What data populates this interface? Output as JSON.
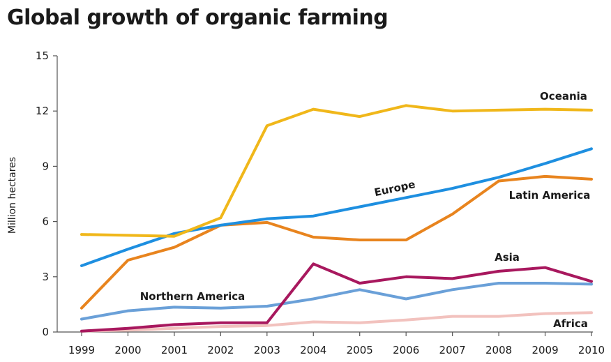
{
  "chart_data": {
    "type": "line",
    "title": "Global growth of organic farming",
    "xlabel": "",
    "ylabel": "Million hectares",
    "ylim": [
      0,
      15
    ],
    "yticks": [
      0,
      3,
      6,
      9,
      12,
      15
    ],
    "x": [
      1999,
      2000,
      2001,
      2002,
      2003,
      2004,
      2005,
      2006,
      2007,
      2008,
      2009,
      2010
    ],
    "grid": false,
    "legend": "inline labels",
    "series": [
      {
        "name": "Oceania",
        "color": "#f0b71a",
        "values": [
          5.3,
          5.25,
          5.2,
          6.2,
          11.2,
          12.1,
          11.7,
          12.3,
          12.0,
          12.05,
          12.1,
          12.05
        ]
      },
      {
        "name": "Europe",
        "color": "#1e8fe0",
        "values": [
          3.6,
          4.5,
          5.35,
          5.8,
          6.15,
          6.3,
          6.8,
          7.3,
          7.8,
          8.4,
          9.15,
          9.95
        ]
      },
      {
        "name": "Latin America",
        "color": "#e8841e",
        "values": [
          1.3,
          3.9,
          4.6,
          5.8,
          5.95,
          5.15,
          5.0,
          5.0,
          6.4,
          8.2,
          8.45,
          8.3
        ]
      },
      {
        "name": "Asia",
        "color": "#a8185e",
        "values": [
          0.05,
          0.2,
          0.4,
          0.5,
          0.5,
          3.7,
          2.65,
          3.0,
          2.9,
          3.3,
          3.5,
          2.75
        ]
      },
      {
        "name": "Northern America",
        "color": "#6aa0d8",
        "values": [
          0.7,
          1.15,
          1.35,
          1.3,
          1.4,
          1.8,
          2.3,
          1.8,
          2.3,
          2.65,
          2.65,
          2.6
        ]
      },
      {
        "name": "Africa",
        "color": "#f2c2be",
        "values": [
          0.05,
          0.1,
          0.2,
          0.3,
          0.35,
          0.55,
          0.5,
          0.65,
          0.85,
          0.85,
          1.0,
          1.05
        ]
      }
    ]
  }
}
